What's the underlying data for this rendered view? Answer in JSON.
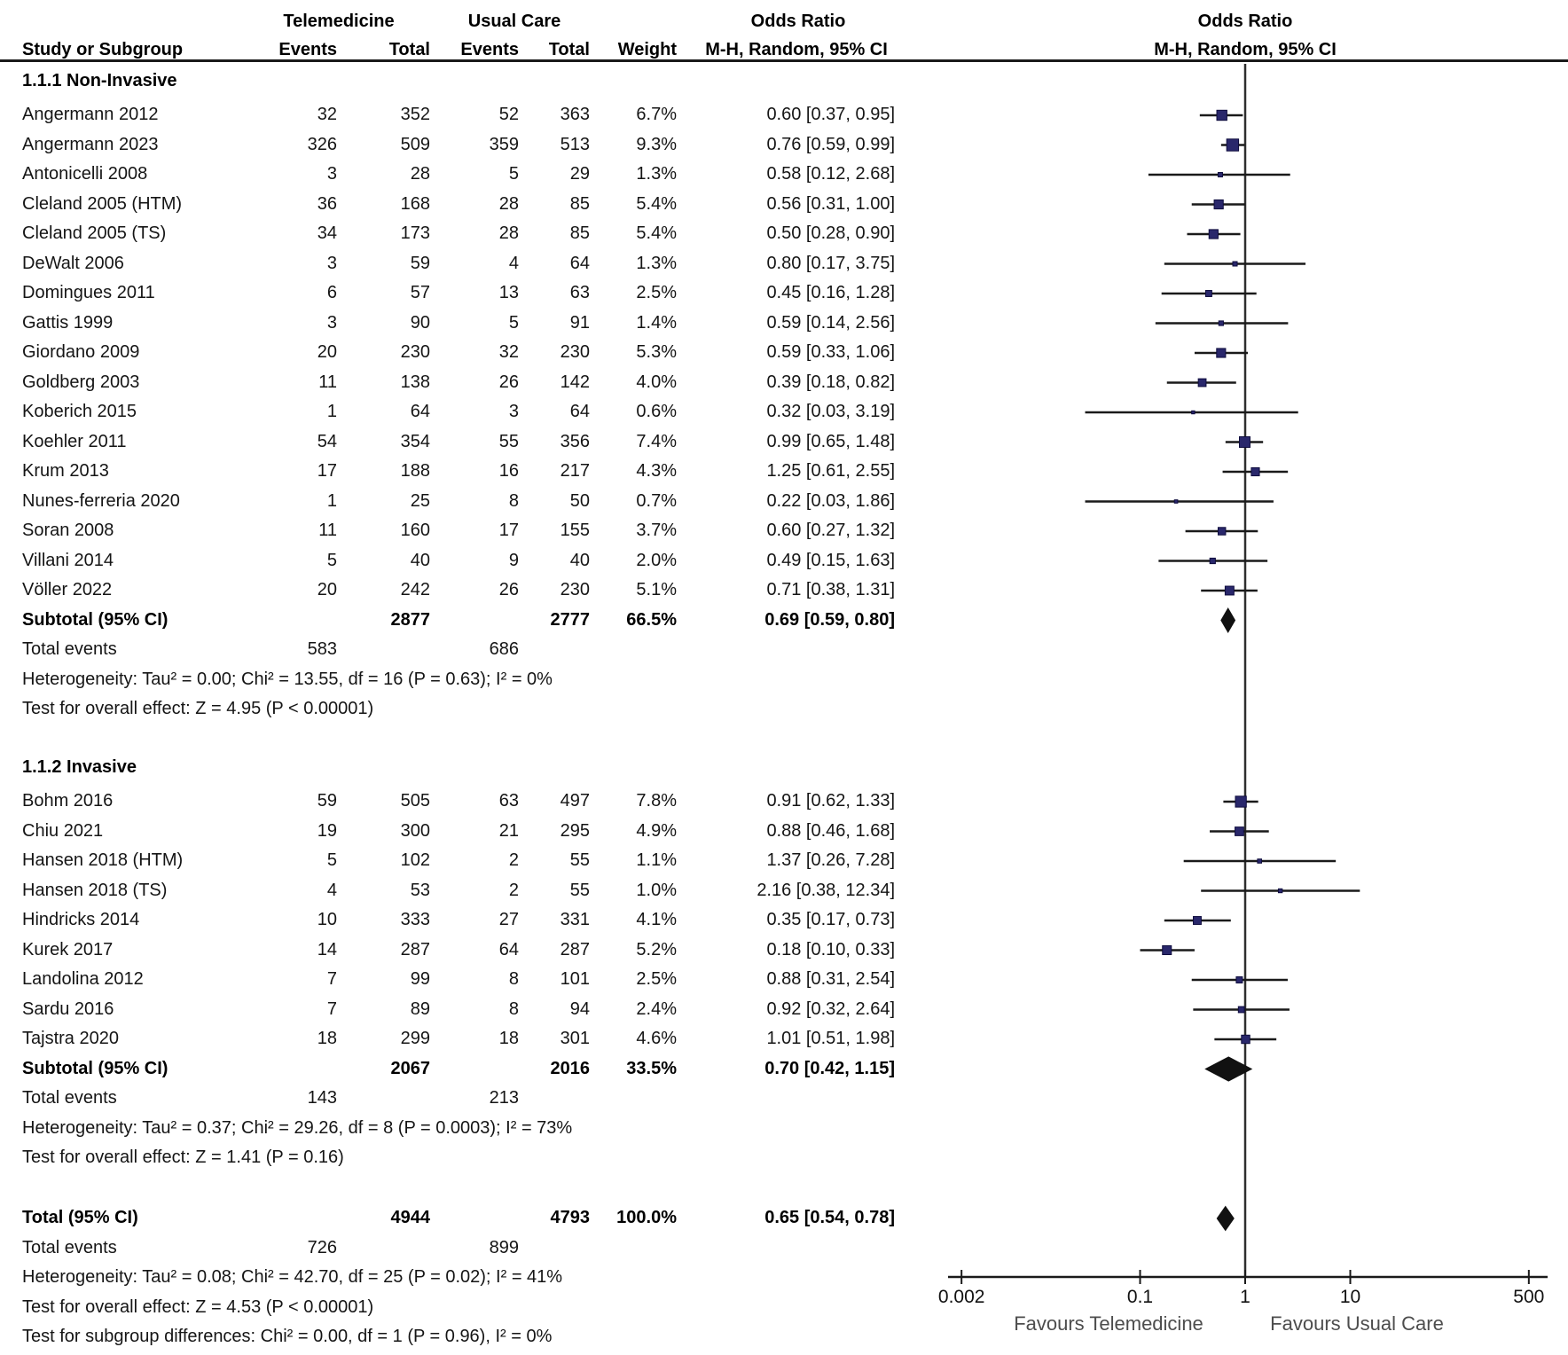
{
  "header": {
    "group_telemedicine": "Telemedicine",
    "group_usual_care": "Usual Care",
    "odds_ratio_left": "Odds Ratio",
    "odds_ratio_right": "Odds Ratio",
    "study": "Study or Subgroup",
    "events_1": "Events",
    "total_1": "Total",
    "events_2": "Events",
    "total_2": "Total",
    "weight": "Weight",
    "mh_left": "M-H, Random, 95% CI",
    "mh_right": "M-H, Random, 95% CI"
  },
  "colors": {
    "marker_fill": "#29276b",
    "marker_border": "#0e0c3d",
    "ci_line": "#1a1a1a",
    "diamond": "#111111",
    "no_effect_line": "#2e2e2e",
    "axis": "#1a1a1a",
    "text": "#151515",
    "favours_text": "#4d4d4d"
  },
  "chart_data": {
    "type": "forest",
    "effect_label": "Odds Ratio",
    "method_label": "M-H, Random, 95% CI",
    "axis": {
      "scale": "log",
      "ticks": [
        "0.002",
        "0.1",
        "1",
        "10",
        "500"
      ],
      "favours_left": "Favours Telemedicine",
      "favours_right": "Favours Usual Care"
    },
    "groups": [
      {
        "name": "1.1.1 Non-Invasive",
        "studies": [
          {
            "name": "Angermann 2012",
            "e1": "32",
            "n1": "352",
            "e2": "52",
            "n2": "363",
            "w": 6.7,
            "weight_label": "6.7%",
            "or": 0.6,
            "lo": 0.37,
            "hi": 0.95,
            "or_label": "0.60 [0.37, 0.95]"
          },
          {
            "name": "Angermann 2023",
            "e1": "326",
            "n1": "509",
            "e2": "359",
            "n2": "513",
            "w": 9.3,
            "weight_label": "9.3%",
            "or": 0.76,
            "lo": 0.59,
            "hi": 0.99,
            "or_label": "0.76 [0.59, 0.99]"
          },
          {
            "name": "Antonicelli 2008",
            "e1": "3",
            "n1": "28",
            "e2": "5",
            "n2": "29",
            "w": 1.3,
            "weight_label": "1.3%",
            "or": 0.58,
            "lo": 0.12,
            "hi": 2.68,
            "or_label": "0.58 [0.12, 2.68]"
          },
          {
            "name": "Cleland 2005 (HTM)",
            "e1": "36",
            "n1": "168",
            "e2": "28",
            "n2": "85",
            "w": 5.4,
            "weight_label": "5.4%",
            "or": 0.56,
            "lo": 0.31,
            "hi": 1.0,
            "or_label": "0.56 [0.31, 1.00]"
          },
          {
            "name": "Cleland 2005 (TS)",
            "e1": "34",
            "n1": "173",
            "e2": "28",
            "n2": "85",
            "w": 5.4,
            "weight_label": "5.4%",
            "or": 0.5,
            "lo": 0.28,
            "hi": 0.9,
            "or_label": "0.50 [0.28, 0.90]"
          },
          {
            "name": "DeWalt 2006",
            "e1": "3",
            "n1": "59",
            "e2": "4",
            "n2": "64",
            "w": 1.3,
            "weight_label": "1.3%",
            "or": 0.8,
            "lo": 0.17,
            "hi": 3.75,
            "or_label": "0.80 [0.17, 3.75]"
          },
          {
            "name": "Domingues 2011",
            "e1": "6",
            "n1": "57",
            "e2": "13",
            "n2": "63",
            "w": 2.5,
            "weight_label": "2.5%",
            "or": 0.45,
            "lo": 0.16,
            "hi": 1.28,
            "or_label": "0.45 [0.16, 1.28]"
          },
          {
            "name": "Gattis 1999",
            "e1": "3",
            "n1": "90",
            "e2": "5",
            "n2": "91",
            "w": 1.4,
            "weight_label": "1.4%",
            "or": 0.59,
            "lo": 0.14,
            "hi": 2.56,
            "or_label": "0.59 [0.14, 2.56]"
          },
          {
            "name": "Giordano 2009",
            "e1": "20",
            "n1": "230",
            "e2": "32",
            "n2": "230",
            "w": 5.3,
            "weight_label": "5.3%",
            "or": 0.59,
            "lo": 0.33,
            "hi": 1.06,
            "or_label": "0.59 [0.33, 1.06]"
          },
          {
            "name": "Goldberg 2003",
            "e1": "11",
            "n1": "138",
            "e2": "26",
            "n2": "142",
            "w": 4.0,
            "weight_label": "4.0%",
            "or": 0.39,
            "lo": 0.18,
            "hi": 0.82,
            "or_label": "0.39 [0.18, 0.82]"
          },
          {
            "name": "Koberich 2015",
            "e1": "1",
            "n1": "64",
            "e2": "3",
            "n2": "64",
            "w": 0.6,
            "weight_label": "0.6%",
            "or": 0.32,
            "lo": 0.03,
            "hi": 3.19,
            "or_label": "0.32 [0.03, 3.19]"
          },
          {
            "name": "Koehler 2011",
            "e1": "54",
            "n1": "354",
            "e2": "55",
            "n2": "356",
            "w": 7.4,
            "weight_label": "7.4%",
            "or": 0.99,
            "lo": 0.65,
            "hi": 1.48,
            "or_label": "0.99 [0.65, 1.48]"
          },
          {
            "name": "Krum 2013",
            "e1": "17",
            "n1": "188",
            "e2": "16",
            "n2": "217",
            "w": 4.3,
            "weight_label": "4.3%",
            "or": 1.25,
            "lo": 0.61,
            "hi": 2.55,
            "or_label": "1.25 [0.61, 2.55]"
          },
          {
            "name": "Nunes-ferreria 2020",
            "e1": "1",
            "n1": "25",
            "e2": "8",
            "n2": "50",
            "w": 0.7,
            "weight_label": "0.7%",
            "or": 0.22,
            "lo": 0.03,
            "hi": 1.86,
            "or_label": "0.22 [0.03, 1.86]"
          },
          {
            "name": "Soran 2008",
            "e1": "11",
            "n1": "160",
            "e2": "17",
            "n2": "155",
            "w": 3.7,
            "weight_label": "3.7%",
            "or": 0.6,
            "lo": 0.27,
            "hi": 1.32,
            "or_label": "0.60 [0.27, 1.32]"
          },
          {
            "name": "Villani 2014",
            "e1": "5",
            "n1": "40",
            "e2": "9",
            "n2": "40",
            "w": 2.0,
            "weight_label": "2.0%",
            "or": 0.49,
            "lo": 0.15,
            "hi": 1.63,
            "or_label": "0.49 [0.15, 1.63]"
          },
          {
            "name": "Völler 2022",
            "e1": "20",
            "n1": "242",
            "e2": "26",
            "n2": "230",
            "w": 5.1,
            "weight_label": "5.1%",
            "or": 0.71,
            "lo": 0.38,
            "hi": 1.31,
            "or_label": "0.71 [0.38, 1.31]"
          }
        ],
        "subtotal": {
          "label": "Subtotal (95% CI)",
          "n1": "2877",
          "n2": "2777",
          "weight_label": "66.5%",
          "or": 0.69,
          "lo": 0.59,
          "hi": 0.8,
          "or_label": "0.69 [0.59, 0.80]"
        },
        "total_events": {
          "label": "Total events",
          "e1": "583",
          "e2": "686"
        },
        "footnotes": [
          "Heterogeneity: Tau² = 0.00; Chi² = 13.55, df = 16 (P = 0.63); I² = 0%",
          "Test for overall effect: Z = 4.95 (P < 0.00001)"
        ]
      },
      {
        "name": "1.1.2 Invasive",
        "studies": [
          {
            "name": "Bohm 2016",
            "e1": "59",
            "n1": "505",
            "e2": "63",
            "n2": "497",
            "w": 7.8,
            "weight_label": "7.8%",
            "or": 0.91,
            "lo": 0.62,
            "hi": 1.33,
            "or_label": "0.91 [0.62, 1.33]"
          },
          {
            "name": "Chiu 2021",
            "e1": "19",
            "n1": "300",
            "e2": "21",
            "n2": "295",
            "w": 4.9,
            "weight_label": "4.9%",
            "or": 0.88,
            "lo": 0.46,
            "hi": 1.68,
            "or_label": "0.88 [0.46, 1.68]"
          },
          {
            "name": "Hansen 2018 (HTM)",
            "e1": "5",
            "n1": "102",
            "e2": "2",
            "n2": "55",
            "w": 1.1,
            "weight_label": "1.1%",
            "or": 1.37,
            "lo": 0.26,
            "hi": 7.28,
            "or_label": "1.37 [0.26, 7.28]"
          },
          {
            "name": "Hansen 2018 (TS)",
            "e1": "4",
            "n1": "53",
            "e2": "2",
            "n2": "55",
            "w": 1.0,
            "weight_label": "1.0%",
            "or": 2.16,
            "lo": 0.38,
            "hi": 12.34,
            "or_label": "2.16 [0.38, 12.34]"
          },
          {
            "name": "Hindricks 2014",
            "e1": "10",
            "n1": "333",
            "e2": "27",
            "n2": "331",
            "w": 4.1,
            "weight_label": "4.1%",
            "or": 0.35,
            "lo": 0.17,
            "hi": 0.73,
            "or_label": "0.35 [0.17, 0.73]"
          },
          {
            "name": "Kurek 2017",
            "e1": "14",
            "n1": "287",
            "e2": "64",
            "n2": "287",
            "w": 5.2,
            "weight_label": "5.2%",
            "or": 0.18,
            "lo": 0.1,
            "hi": 0.33,
            "or_label": "0.18 [0.10, 0.33]"
          },
          {
            "name": "Landolina 2012",
            "e1": "7",
            "n1": "99",
            "e2": "8",
            "n2": "101",
            "w": 2.5,
            "weight_label": "2.5%",
            "or": 0.88,
            "lo": 0.31,
            "hi": 2.54,
            "or_label": "0.88 [0.31, 2.54]"
          },
          {
            "name": "Sardu 2016",
            "e1": "7",
            "n1": "89",
            "e2": "8",
            "n2": "94",
            "w": 2.4,
            "weight_label": "2.4%",
            "or": 0.92,
            "lo": 0.32,
            "hi": 2.64,
            "or_label": "0.92 [0.32, 2.64]"
          },
          {
            "name": "Tajstra 2020",
            "e1": "18",
            "n1": "299",
            "e2": "18",
            "n2": "301",
            "w": 4.6,
            "weight_label": "4.6%",
            "or": 1.01,
            "lo": 0.51,
            "hi": 1.98,
            "or_label": "1.01 [0.51, 1.98]"
          }
        ],
        "subtotal": {
          "label": "Subtotal (95% CI)",
          "n1": "2067",
          "n2": "2016",
          "weight_label": "33.5%",
          "or": 0.7,
          "lo": 0.42,
          "hi": 1.15,
          "or_label": "0.70 [0.42, 1.15]"
        },
        "total_events": {
          "label": "Total events",
          "e1": "143",
          "e2": "213"
        },
        "footnotes": [
          "Heterogeneity: Tau² = 0.37; Chi² = 29.26, df = 8 (P = 0.0003); I² = 73%",
          "Test for overall effect: Z = 1.41 (P = 0.16)"
        ]
      }
    ],
    "total": {
      "label": "Total (95% CI)",
      "n1": "4944",
      "n2": "4793",
      "weight_label": "100.0%",
      "or": 0.65,
      "lo": 0.54,
      "hi": 0.78,
      "or_label": "0.65 [0.54, 0.78]",
      "total_events": {
        "label": "Total events",
        "e1": "726",
        "e2": "899"
      },
      "footnotes": [
        "Heterogeneity: Tau² = 0.08; Chi² = 42.70, df = 25 (P = 0.02); I² = 41%",
        "Test for overall effect: Z = 4.53 (P < 0.00001)",
        "Test for subgroup differences: Chi² = 0.00, df = 1 (P = 0.96), I² = 0%"
      ]
    }
  }
}
